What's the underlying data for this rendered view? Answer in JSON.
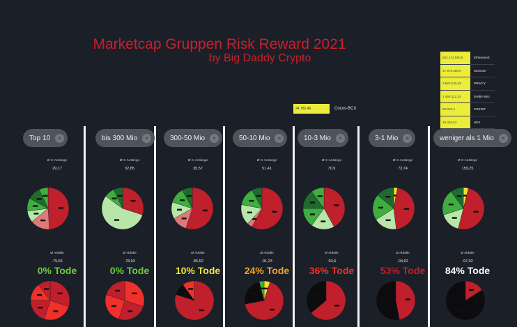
{
  "header": {
    "title": "Marketcap Gruppen Risk Reward 2021",
    "subtitle": "by Big Daddy Crypto"
  },
  "cocos": {
    "value": "24.782,46",
    "name": "Cocos-BCX"
  },
  "legend": [
    {
      "value": "822.172.580,8",
      "name": "EthereumX"
    },
    {
      "value": "17.679.358,9",
      "name": "Storeum"
    },
    {
      "value": "3.822.640,49",
      "name": "PRIVCY"
    },
    {
      "value": "1.493.112,33",
      "name": "SHIBA INU"
    },
    {
      "value": "80.923,2",
      "name": "CREDIT"
    },
    {
      "value": "33.428,53",
      "name": "HEX"
    }
  ],
  "stat_label": "Ø X-Anstiege",
  "ab_label": "Ø Abfälle",
  "colors": {
    "red": "#c0202c",
    "bright_red": "#f0302a",
    "dark_green": "#1e6b2e",
    "green": "#3fae3f",
    "light_green": "#b8e6a8",
    "pink": "#e07878",
    "yellow": "#f0e030",
    "black": "#0c0c0e",
    "lime": "#6bd23a",
    "yellow_text": "#f0e832",
    "orange": "#f5a623",
    "white": "#ffffff"
  },
  "groups": [
    {
      "label": "Top 10",
      "x_anstieg": "29,17",
      "abfaelle": "-75,66",
      "tode": "0% Tode",
      "tode_color": "#6bd23a",
      "top": [
        {
          "v": 49,
          "c": "red"
        },
        {
          "v": 15,
          "c": "pink"
        },
        {
          "v": 9,
          "c": "light_green"
        },
        {
          "v": 10,
          "c": "green"
        },
        {
          "v": 10,
          "c": "dark_green"
        },
        {
          "v": 7,
          "c": "green"
        }
      ],
      "bottom": [
        {
          "v": 30,
          "c": "red"
        },
        {
          "v": 25,
          "c": "bright_red"
        },
        {
          "v": 20,
          "c": "red"
        },
        {
          "v": 15,
          "c": "bright_red"
        },
        {
          "v": 10,
          "c": "red"
        }
      ]
    },
    {
      "label": "bis 300 Mio",
      "x_anstieg": "32,85",
      "abfaelle": "-78,93",
      "tode": "0% Tode",
      "tode_color": "#6bd23a",
      "top": [
        {
          "v": 30,
          "c": "red"
        },
        {
          "v": 55,
          "c": "light_green"
        },
        {
          "v": 8,
          "c": "green"
        },
        {
          "v": 7,
          "c": "dark_green"
        }
      ],
      "bottom": [
        {
          "v": 30,
          "c": "bright_red"
        },
        {
          "v": 25,
          "c": "red"
        },
        {
          "v": 25,
          "c": "bright_red"
        },
        {
          "v": 20,
          "c": "red"
        }
      ]
    },
    {
      "label": "300-50 Mio",
      "x_anstieg": "35,57",
      "abfaelle": "-85,52",
      "tode": "10% Tode",
      "tode_color": "#f0e832",
      "top": [
        {
          "v": 55,
          "c": "red"
        },
        {
          "v": 12,
          "c": "pink"
        },
        {
          "v": 13,
          "c": "light_green"
        },
        {
          "v": 12,
          "c": "green"
        },
        {
          "v": 8,
          "c": "dark_green"
        }
      ],
      "bottom": [
        {
          "v": 80,
          "c": "red"
        },
        {
          "v": 10,
          "c": "black"
        },
        {
          "v": 10,
          "c": "bright_red"
        }
      ]
    },
    {
      "label": "50-10 Mio",
      "x_anstieg": "51,41",
      "abfaelle": "-91,23",
      "tode": "24% Tode",
      "tode_color": "#f5a623",
      "top": [
        {
          "v": 58,
          "c": "red"
        },
        {
          "v": 4,
          "c": "pink"
        },
        {
          "v": 16,
          "c": "light_green"
        },
        {
          "v": 14,
          "c": "green"
        },
        {
          "v": 8,
          "c": "dark_green"
        }
      ],
      "bottom": [
        {
          "v": 5,
          "c": "yellow"
        },
        {
          "v": 67,
          "c": "red"
        },
        {
          "v": 24,
          "c": "black"
        },
        {
          "v": 4,
          "c": "green"
        }
      ]
    },
    {
      "label": "10-3 Mio",
      "x_anstieg": "70,9",
      "abfaelle": "-93,6",
      "tode": "36% Tode",
      "tode_color": "#f0302a",
      "top": [
        {
          "v": 42,
          "c": "red"
        },
        {
          "v": 18,
          "c": "light_green"
        },
        {
          "v": 15,
          "c": "green"
        },
        {
          "v": 15,
          "c": "dark_green"
        },
        {
          "v": 10,
          "c": "green"
        }
      ],
      "bottom": [
        {
          "v": 64,
          "c": "red"
        },
        {
          "v": 36,
          "c": "black"
        }
      ]
    },
    {
      "label": "3-1 Mio",
      "x_anstieg": "73,74",
      "abfaelle": "-94,92",
      "tode": "53% Tode",
      "tode_color": "#c0202c",
      "top": [
        {
          "v": 3,
          "c": "yellow"
        },
        {
          "v": 45,
          "c": "red"
        },
        {
          "v": 18,
          "c": "light_green"
        },
        {
          "v": 20,
          "c": "green"
        },
        {
          "v": 14,
          "c": "dark_green"
        }
      ],
      "bottom": [
        {
          "v": 47,
          "c": "red"
        },
        {
          "v": 53,
          "c": "black"
        }
      ]
    },
    {
      "label": "weniger als 1 Mio",
      "x_anstieg": "159,25",
      "abfaelle": "-97,02",
      "tode": "84% Tode",
      "tode_color": "#ffffff",
      "top": [
        {
          "v": 4,
          "c": "yellow"
        },
        {
          "v": 50,
          "c": "red"
        },
        {
          "v": 16,
          "c": "light_green"
        },
        {
          "v": 20,
          "c": "green"
        },
        {
          "v": 10,
          "c": "dark_green"
        }
      ],
      "bottom": [
        {
          "v": 16,
          "c": "red"
        },
        {
          "v": 84,
          "c": "black"
        }
      ]
    }
  ]
}
